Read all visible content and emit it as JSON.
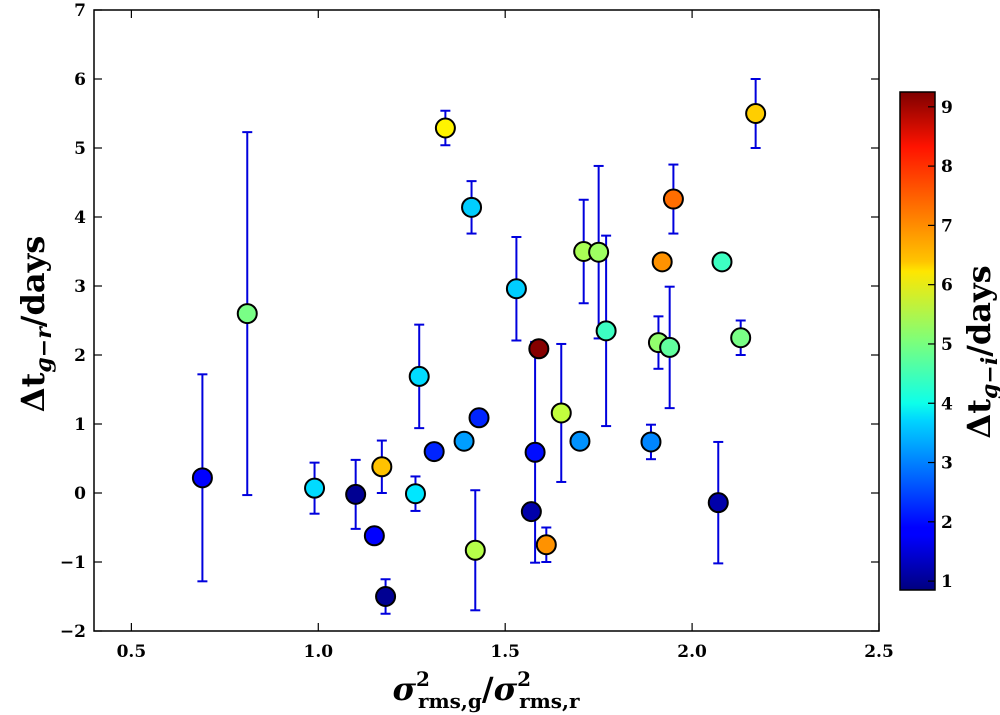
{
  "chart_data": {
    "type": "scatter",
    "title": "",
    "xlabel": {
      "base": "σ",
      "sup": "2",
      "sub": "rms,g",
      "sep": "/",
      "base2": "σ",
      "sup2": "2",
      "sub2": "rms,r"
    },
    "ylabel": {
      "base": "Δt",
      "sub": "g−r",
      "suffix": "/days"
    },
    "xlim": [
      0.4,
      2.5
    ],
    "ylim": [
      -2,
      7
    ],
    "xticks": [
      0.5,
      1.0,
      1.5,
      2.0,
      2.5
    ],
    "xtick_labels": [
      "0.5",
      "1.0",
      "1.5",
      "2.0",
      "2.5"
    ],
    "yticks": [
      -2,
      -1,
      0,
      1,
      2,
      3,
      4,
      5,
      6,
      7
    ],
    "ytick_labels": [
      "−2",
      "−1",
      "0",
      "1",
      "2",
      "3",
      "4",
      "5",
      "6",
      "7"
    ],
    "colorbar": {
      "label": {
        "base": "Δt",
        "sub": "g−i",
        "suffix": "/days"
      },
      "range": [
        0.85,
        9.25
      ],
      "ticks": [
        1,
        2,
        3,
        4,
        5,
        6,
        7,
        8,
        9
      ],
      "tick_labels": [
        "1",
        "2",
        "3",
        "4",
        "5",
        "6",
        "7",
        "8",
        "9"
      ],
      "colormap": "jet"
    },
    "errorbar_color": "#0000dd",
    "points": [
      {
        "x": 0.69,
        "y": 0.22,
        "err": 1.5,
        "c": 1.9
      },
      {
        "x": 0.81,
        "y": 2.6,
        "err": 2.63,
        "c": 5.0
      },
      {
        "x": 0.99,
        "y": 0.07,
        "err": 0.37,
        "c": 3.7
      },
      {
        "x": 1.1,
        "y": -0.02,
        "err": 0.5,
        "c": 1.0
      },
      {
        "x": 1.15,
        "y": -0.62,
        "err": null,
        "c": 1.9
      },
      {
        "x": 1.17,
        "y": 0.38,
        "err": 0.38,
        "c": 6.6
      },
      {
        "x": 1.18,
        "y": -1.5,
        "err": 0.25,
        "c": 1.0
      },
      {
        "x": 1.26,
        "y": -0.01,
        "err": 0.25,
        "c": 3.8
      },
      {
        "x": 1.27,
        "y": 1.69,
        "err": 0.75,
        "c": 3.7
      },
      {
        "x": 1.31,
        "y": 0.6,
        "err": null,
        "c": 2.2
      },
      {
        "x": 1.34,
        "y": 5.29,
        "err": 0.25,
        "c": 6.2
      },
      {
        "x": 1.39,
        "y": 0.75,
        "err": null,
        "c": 3.2
      },
      {
        "x": 1.41,
        "y": 4.14,
        "err": 0.38,
        "c": 3.6
      },
      {
        "x": 1.42,
        "y": -0.83,
        "err": 0.87,
        "c": 5.5
      },
      {
        "x": 1.43,
        "y": 1.09,
        "err": null,
        "c": 2.2
      },
      {
        "x": 1.53,
        "y": 2.96,
        "err": 0.75,
        "c": 3.6
      },
      {
        "x": 1.57,
        "y": -0.27,
        "err": null,
        "c": 1.2
      },
      {
        "x": 1.58,
        "y": 0.59,
        "err": 1.6,
        "c": 2.0
      },
      {
        "x": 1.59,
        "y": 2.09,
        "err": null,
        "c": 9.2
      },
      {
        "x": 1.61,
        "y": -0.75,
        "err": 0.25,
        "c": 7.0
      },
      {
        "x": 1.65,
        "y": 1.16,
        "err": 1.0,
        "c": 5.6
      },
      {
        "x": 1.7,
        "y": 0.75,
        "err": null,
        "c": 3.1
      },
      {
        "x": 1.71,
        "y": 3.5,
        "err": 0.75,
        "c": 5.4
      },
      {
        "x": 1.75,
        "y": 3.49,
        "err": 1.25,
        "c": 5.3
      },
      {
        "x": 1.77,
        "y": 2.35,
        "err": 1.38,
        "c": 4.5
      },
      {
        "x": 1.89,
        "y": 0.74,
        "err": 0.25,
        "c": 3.0
      },
      {
        "x": 1.91,
        "y": 2.18,
        "err": 0.38,
        "c": 5.2
      },
      {
        "x": 1.92,
        "y": 3.35,
        "err": null,
        "c": 7.0
      },
      {
        "x": 1.94,
        "y": 2.11,
        "err": 0.88,
        "c": 4.8
      },
      {
        "x": 1.95,
        "y": 4.26,
        "err": 0.5,
        "c": 7.3
      },
      {
        "x": 2.07,
        "y": -0.14,
        "err": 0.88,
        "c": 1.2
      },
      {
        "x": 2.08,
        "y": 3.35,
        "err": null,
        "c": 4.5
      },
      {
        "x": 2.13,
        "y": 2.25,
        "err": 0.25,
        "c": 5.0
      },
      {
        "x": 2.17,
        "y": 5.5,
        "err": 0.5,
        "c": 6.5
      }
    ]
  }
}
